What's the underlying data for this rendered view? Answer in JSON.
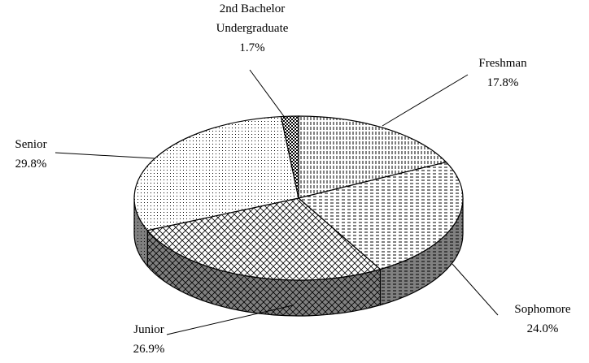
{
  "chart_data": {
    "type": "pie3d",
    "categories": [
      "Freshman",
      "Sophomore",
      "Junior",
      "Senior",
      "2nd Bachelor Undergraduate"
    ],
    "values": [
      17.8,
      24.0,
      26.9,
      29.8,
      1.7
    ],
    "value_labels": [
      "17.8%",
      "24.0%",
      "26.9%",
      "29.8%",
      "1.7%"
    ]
  }
}
